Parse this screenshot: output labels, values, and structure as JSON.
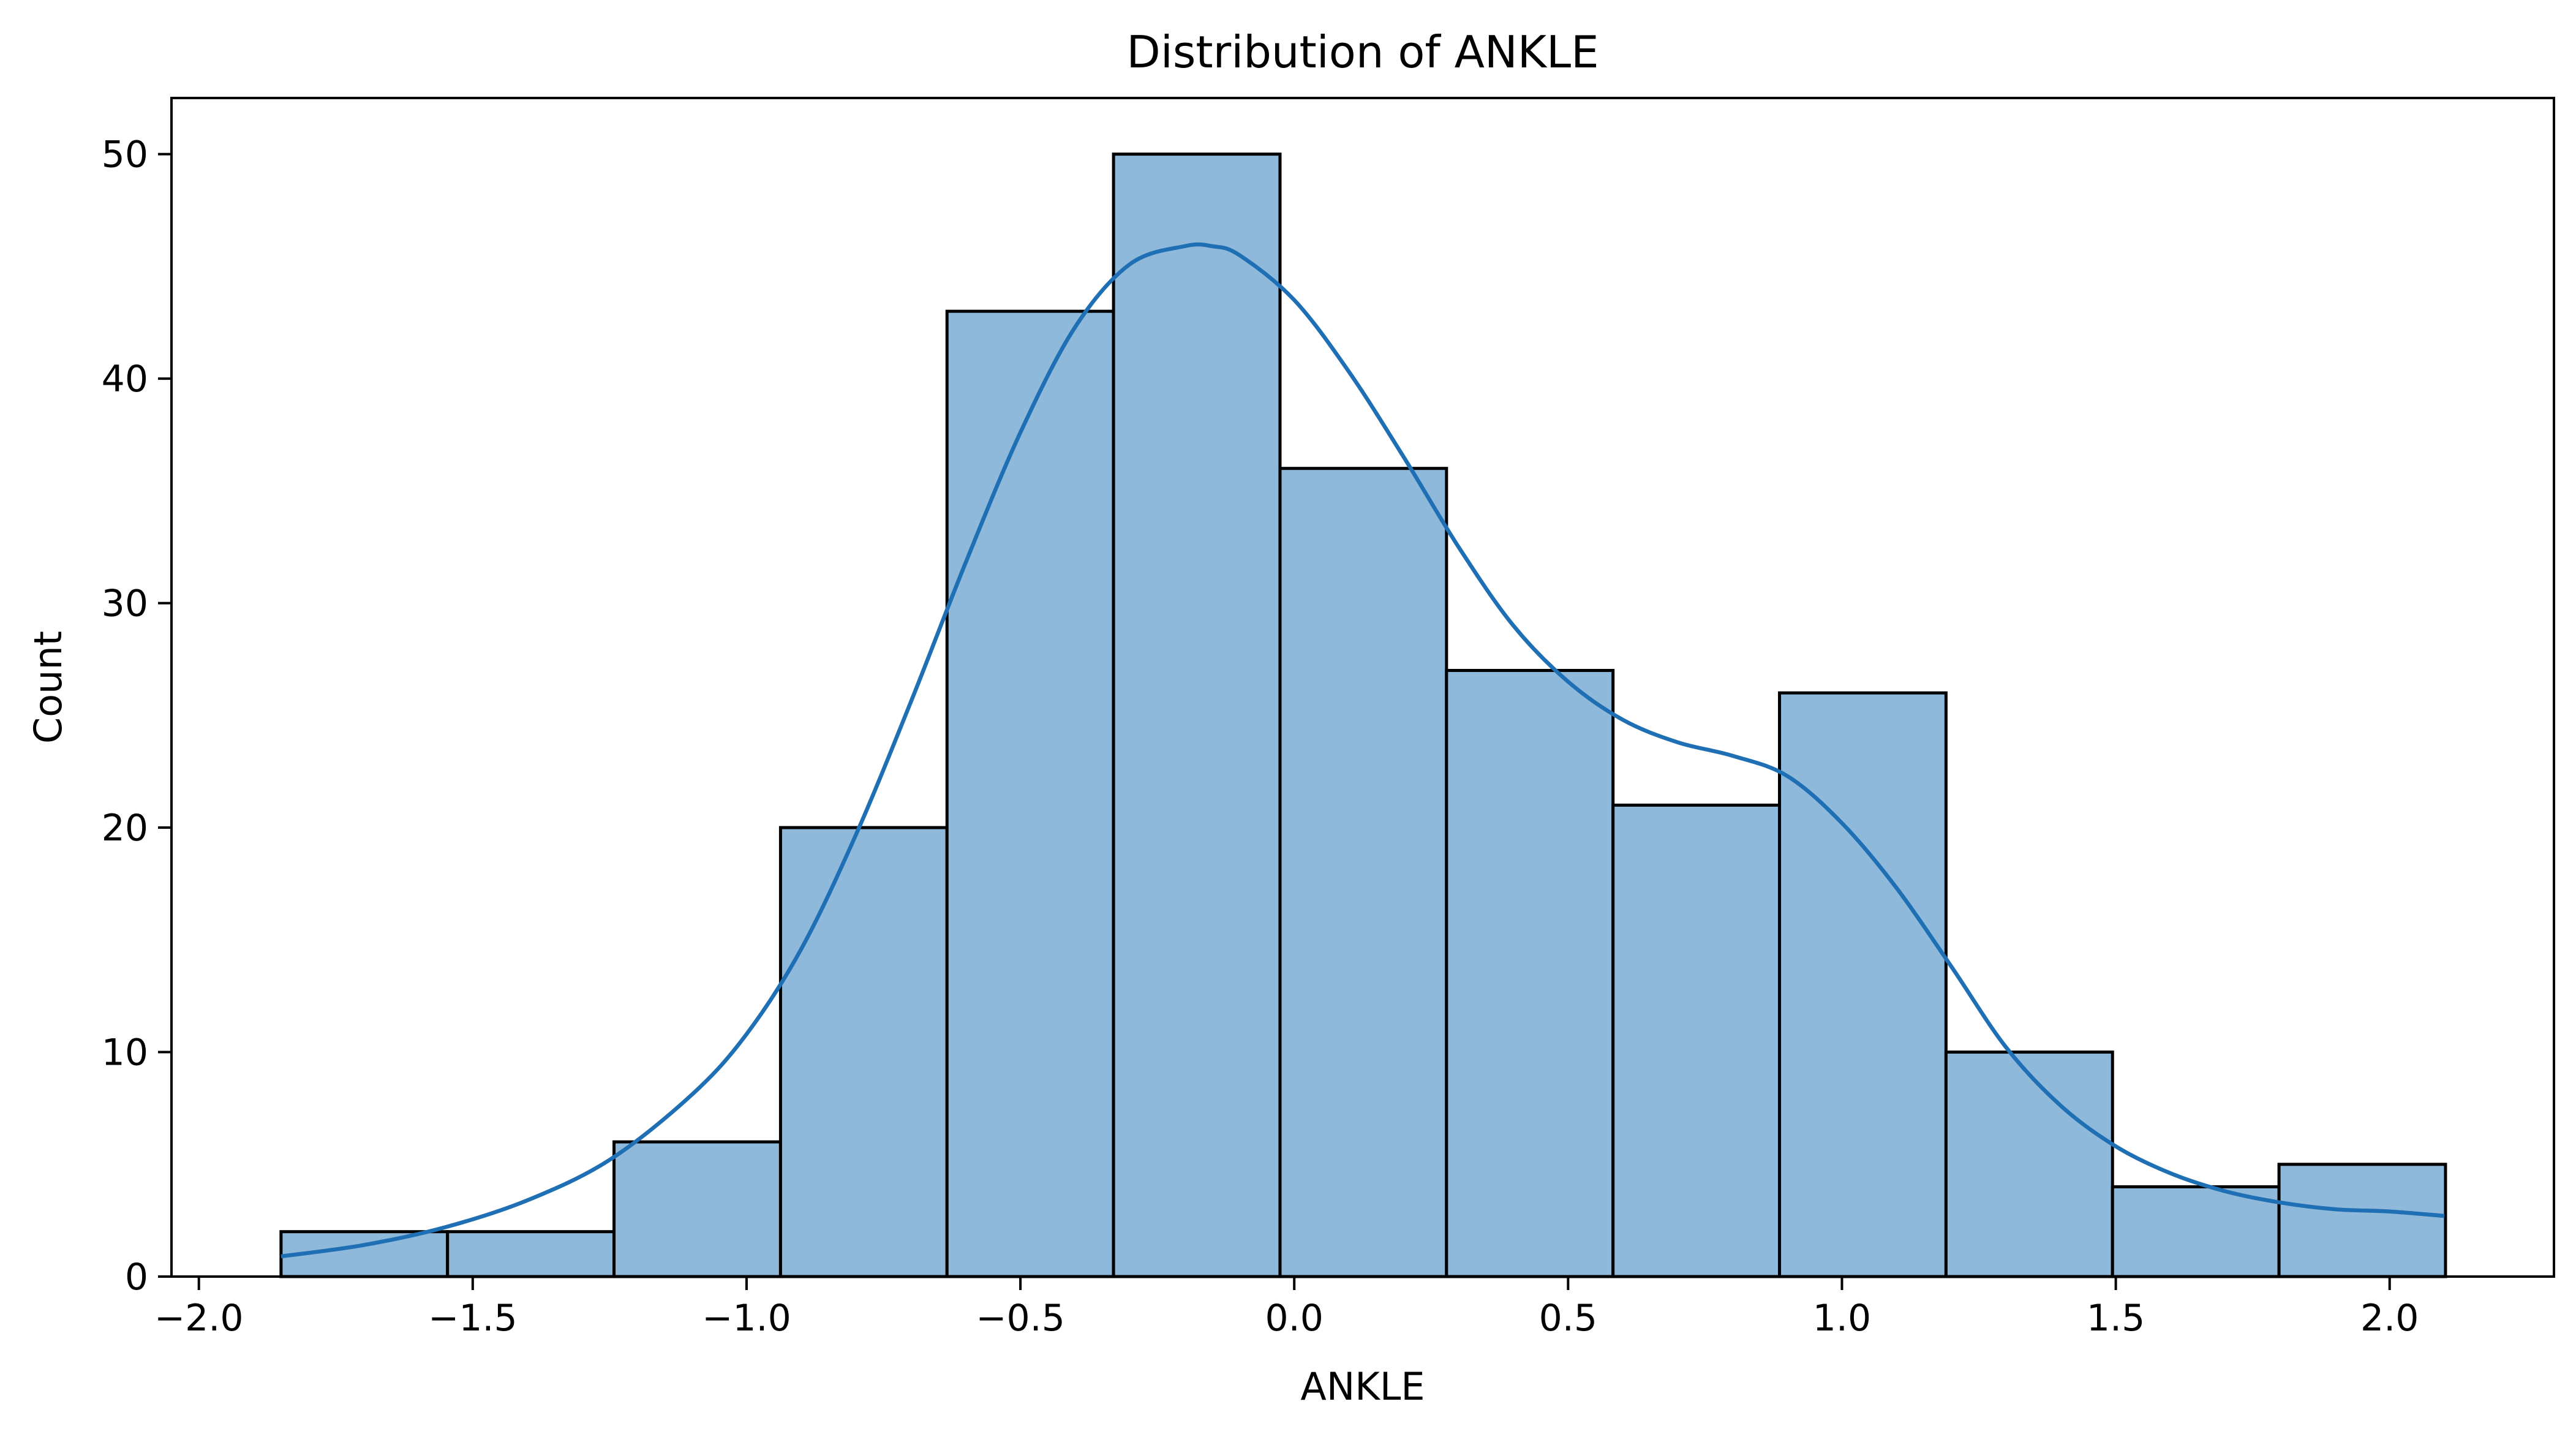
{
  "chart_data": {
    "type": "bar",
    "title": "Distribution of ANKLE",
    "xlabel": "ANKLE",
    "ylabel": "Count",
    "xlim": [
      -2.05,
      2.3
    ],
    "ylim": [
      0,
      52.5
    ],
    "xticks": [
      -2.0,
      -1.5,
      -1.0,
      -0.5,
      0.0,
      0.5,
      1.0,
      1.5,
      2.0
    ],
    "xtick_labels": [
      "−2.0",
      "−1.5",
      "−1.0",
      "−0.5",
      "0.0",
      "0.5",
      "1.0",
      "1.5",
      "2.0"
    ],
    "yticks": [
      0,
      10,
      20,
      30,
      40,
      50
    ],
    "ytick_labels": [
      "0",
      "10",
      "20",
      "30",
      "40",
      "50"
    ],
    "bin_edges": [
      -1.85,
      -1.546,
      -1.242,
      -0.938,
      -0.634,
      -0.33,
      -0.026,
      0.278,
      0.582,
      0.886,
      1.19,
      1.494,
      1.798,
      2.102
    ],
    "values": [
      2,
      2,
      6,
      20,
      43,
      50,
      36,
      27,
      21,
      26,
      10,
      4,
      5
    ],
    "series": [
      {
        "type": "kde",
        "x": [
          -1.85,
          -1.7,
          -1.55,
          -1.4,
          -1.25,
          -1.1,
          -1.0,
          -0.9,
          -0.8,
          -0.7,
          -0.6,
          -0.5,
          -0.4,
          -0.3,
          -0.2,
          -0.15,
          -0.1,
          0.0,
          0.1,
          0.2,
          0.3,
          0.4,
          0.5,
          0.6,
          0.7,
          0.8,
          0.9,
          1.0,
          1.1,
          1.2,
          1.3,
          1.4,
          1.5,
          1.6,
          1.7,
          1.8,
          1.9,
          2.0,
          2.1
        ],
        "y": [
          0.9,
          1.4,
          2.2,
          3.4,
          5.2,
          8.1,
          10.8,
          14.6,
          19.7,
          25.6,
          31.8,
          37.6,
          42.3,
          45.1,
          45.9,
          45.9,
          45.5,
          43.5,
          40.3,
          36.5,
          32.5,
          29.0,
          26.5,
          24.8,
          23.8,
          23.2,
          22.3,
          20.2,
          17.3,
          13.8,
          10.2,
          7.6,
          5.8,
          4.6,
          3.8,
          3.3,
          3.0,
          2.9,
          2.7
        ]
      }
    ],
    "bar_fill": "#8fb9da",
    "bar_edge": "#000000",
    "kde_color": "#1f6fb4",
    "grid": false
  }
}
